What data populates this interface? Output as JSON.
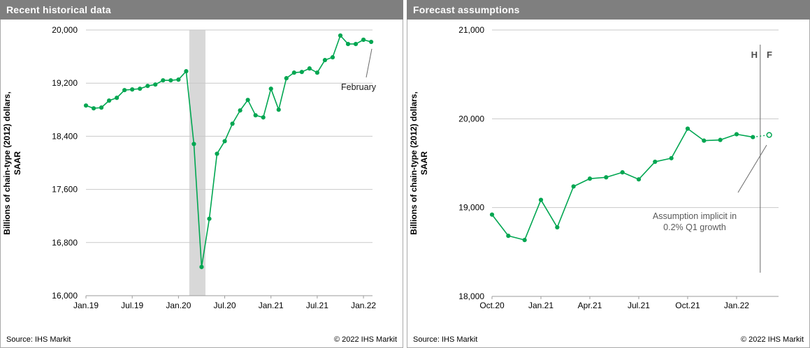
{
  "panels": [
    {
      "title": "Recent historical data",
      "y_axis_title": {
        "line1": "Billions of chain-type (2012) dollars,",
        "line2": "SAAR"
      },
      "annotation": {
        "text": "February"
      },
      "footer": {
        "source": "Source: IHS Markit",
        "copyright": "© 2022 IHS Markit"
      }
    },
    {
      "title": "Forecast assumptions",
      "y_axis_title": {
        "line1": "Billions of chain-type (2012) dollars,",
        "line2": "SAAR"
      },
      "annotation": {
        "line1": "Assumption implicit in",
        "line2": "0.2% Q1 growth"
      },
      "history_label": "H",
      "forecast_label": "F",
      "footer": {
        "source": "Source: IHS Markit",
        "copyright": "© 2022 IHS Markit"
      }
    }
  ],
  "colors": {
    "titlebar": "#7f7f7f",
    "series_green": "#00a651",
    "gridline": "#c9c9c9",
    "axis": "#9b9b9b",
    "recession_band": "#d8d8d8",
    "leader_line": "#6b6b6b",
    "divider_line": "#6b6b6b",
    "tick_text": "#000000"
  },
  "chart_data": [
    {
      "type": "line",
      "title": "Recent historical data",
      "ylabel": "Billions of chain-type (2012) dollars, SAAR",
      "x": [
        "Jan 2019",
        "Feb 2019",
        "Mar 2019",
        "Apr 2019",
        "May 2019",
        "Jun 2019",
        "Jul 2019",
        "Aug 2019",
        "Sep 2019",
        "Oct 2019",
        "Nov 2019",
        "Dec 2019",
        "Jan 2020",
        "Feb 2020",
        "Mar 2020",
        "Apr 2020",
        "May 2020",
        "Jun 2020",
        "Jul 2020",
        "Aug 2020",
        "Sep 2020",
        "Oct 2020",
        "Nov 2020",
        "Dec 2020",
        "Jan 2021",
        "Feb 2021",
        "Mar 2021",
        "Apr 2021",
        "May 2021",
        "Jun 2021",
        "Jul 2021",
        "Aug 2021",
        "Sep 2021",
        "Oct 2021",
        "Nov 2021",
        "Dec 2021",
        "Jan 2022",
        "Feb 2022"
      ],
      "values": [
        18863,
        18821,
        18832,
        18937,
        18979,
        19095,
        19105,
        19116,
        19158,
        19179,
        19242,
        19242,
        19253,
        19379,
        18284,
        16432,
        17158,
        18137,
        18326,
        18589,
        18789,
        18947,
        18716,
        18684,
        19116,
        18800,
        19274,
        19358,
        19368,
        19421,
        19358,
        19547,
        19589,
        19916,
        19789,
        19789,
        19853,
        19821
      ],
      "ylim": [
        16000,
        20000
      ],
      "y_ticks": [
        16000,
        16800,
        17600,
        18400,
        19200,
        20000
      ],
      "y_tick_labels": [
        "16,000",
        "16,800",
        "17,600",
        "18,400",
        "19,200",
        "20,000"
      ],
      "x_tick_labels": [
        "Jan.19",
        "Jul.19",
        "Jan.20",
        "Jul.20",
        "Jan.21",
        "Jul.21",
        "Jan.22"
      ],
      "x_tick_indices": [
        0,
        6,
        12,
        18,
        24,
        30,
        36
      ],
      "grid": true,
      "legend": "none",
      "recession_band": {
        "from_index": 13.4,
        "to_index": 15.5
      },
      "annotation": {
        "text": "February",
        "index": 37
      }
    },
    {
      "type": "line",
      "title": "Forecast assumptions",
      "ylabel": "Billions of chain-type (2012) dollars, SAAR",
      "x": [
        "Oct 2020",
        "Nov 2020",
        "Dec 2020",
        "Jan 2021",
        "Feb 2021",
        "Mar 2021",
        "Apr 2021",
        "May 2021",
        "Jun 2021",
        "Jul 2021",
        "Aug 2021",
        "Sep 2021",
        "Oct 2021",
        "Nov 2021",
        "Dec 2021",
        "Jan 2022",
        "Feb 2022",
        "Mar 2022"
      ],
      "values": [
        18921,
        18682,
        18635,
        19087,
        18778,
        19238,
        19326,
        19341,
        19397,
        19318,
        19516,
        19556,
        19889,
        19754,
        19762,
        19826,
        19794,
        19818
      ],
      "forecast_start_index": 17,
      "ylim": [
        18000,
        21000
      ],
      "y_ticks": [
        18000,
        19000,
        20000,
        21000
      ],
      "y_tick_labels": [
        "18,000",
        "19,000",
        "20,000",
        "21,000"
      ],
      "x_tick_labels": [
        "Oct.20",
        "Jan.21",
        "Apr.21",
        "Jul.21",
        "Oct.21",
        "Jan.22"
      ],
      "x_tick_indices": [
        0,
        3,
        6,
        9,
        12,
        15
      ],
      "grid": true,
      "legend": "none",
      "hf_divider_index": 16.45,
      "history_label": "H",
      "forecast_label": "F",
      "annotation": {
        "text": "Assumption implicit in 0.2% Q1 growth",
        "index": 17
      }
    }
  ]
}
